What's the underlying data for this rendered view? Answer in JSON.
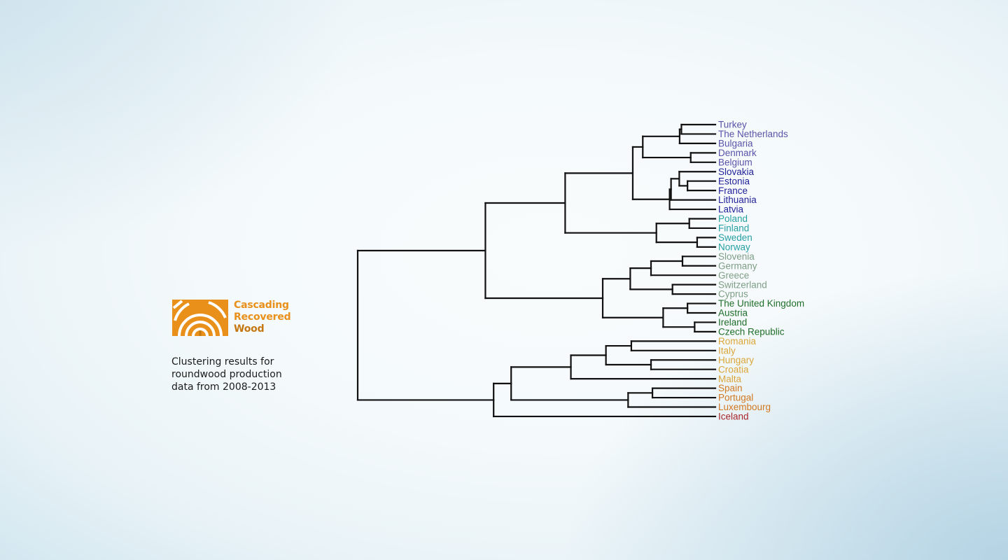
{
  "logo": {
    "line1": "Cascading",
    "line2": "Recovered",
    "line3": "Wood"
  },
  "caption": {
    "line1": "Clustering results for",
    "line2": "roundwood production",
    "line3": "data from 2008-2013"
  },
  "colors": {
    "brand_orange": "#e8901a",
    "brand_dark_orange": "#c57710",
    "tree_line": "#111111"
  },
  "dendrogram": {
    "leaves": [
      {
        "label": "Turkey",
        "color": "#5a54a8"
      },
      {
        "label": "The Netherlands",
        "color": "#5a54a8"
      },
      {
        "label": "Bulgaria",
        "color": "#5a54a8"
      },
      {
        "label": "Denmark",
        "color": "#5a54a8"
      },
      {
        "label": "Belgium",
        "color": "#5a54a8"
      },
      {
        "label": "Slovakia",
        "color": "#23239a"
      },
      {
        "label": "Estonia",
        "color": "#23239a"
      },
      {
        "label": "France",
        "color": "#23239a"
      },
      {
        "label": "Lithuania",
        "color": "#23239a"
      },
      {
        "label": "Latvia",
        "color": "#23239a"
      },
      {
        "label": "Poland",
        "color": "#27a0a4"
      },
      {
        "label": "Finland",
        "color": "#27a0a4"
      },
      {
        "label": "Sweden",
        "color": "#27a0a4"
      },
      {
        "label": "Norway",
        "color": "#27a0a4"
      },
      {
        "label": "Slovenia",
        "color": "#7f9e86"
      },
      {
        "label": "Germany",
        "color": "#7f9e86"
      },
      {
        "label": "Greece",
        "color": "#7f9e86"
      },
      {
        "label": "Switzerland",
        "color": "#7f9e86"
      },
      {
        "label": "Cyprus",
        "color": "#7f9e86"
      },
      {
        "label": "The United Kingdom",
        "color": "#1f6e2a"
      },
      {
        "label": "Austria",
        "color": "#1f6e2a"
      },
      {
        "label": "Ireland",
        "color": "#1f6e2a"
      },
      {
        "label": "Czech Republic",
        "color": "#1f6e2a"
      },
      {
        "label": "Romania",
        "color": "#dba63a"
      },
      {
        "label": "Italy",
        "color": "#dba63a"
      },
      {
        "label": "Hungary",
        "color": "#dba63a"
      },
      {
        "label": "Croatia",
        "color": "#dba63a"
      },
      {
        "label": "Malta",
        "color": "#dba63a"
      },
      {
        "label": "Spain",
        "color": "#d2781f"
      },
      {
        "label": "Portugal",
        "color": "#d2781f"
      },
      {
        "label": "Luxembourg",
        "color": "#d2781f"
      },
      {
        "label": "Iceland",
        "color": "#a8262b"
      }
    ],
    "merges": [
      {
        "a": "L0",
        "b": "L1",
        "height": 0.095
      },
      {
        "a": "M0",
        "b": "L2",
        "height": 0.1
      },
      {
        "a": "L3",
        "b": "L4",
        "height": 0.069
      },
      {
        "a": "M1",
        "b": "M2",
        "height": 0.203
      },
      {
        "a": "L6",
        "b": "L7",
        "height": 0.078
      },
      {
        "a": "L5",
        "b": "M4",
        "height": 0.101
      },
      {
        "a": "M5",
        "b": "L8",
        "height": 0.124
      },
      {
        "a": "M6",
        "b": "L9",
        "height": 0.128
      },
      {
        "a": "M3",
        "b": "M7",
        "height": 0.231
      },
      {
        "a": "L10",
        "b": "L11",
        "height": 0.073
      },
      {
        "a": "L12",
        "b": "L13",
        "height": 0.051
      },
      {
        "a": "M9",
        "b": "M10",
        "height": 0.165
      },
      {
        "a": "M8",
        "b": "M11",
        "height": 0.42
      },
      {
        "a": "L14",
        "b": "L15",
        "height": 0.092
      },
      {
        "a": "M13",
        "b": "L16",
        "height": 0.18
      },
      {
        "a": "L17",
        "b": "L18",
        "height": 0.12
      },
      {
        "a": "M14",
        "b": "M15",
        "height": 0.238
      },
      {
        "a": "L19",
        "b": "L20",
        "height": 0.078
      },
      {
        "a": "L21",
        "b": "L22",
        "height": 0.058
      },
      {
        "a": "M17",
        "b": "M18",
        "height": 0.146
      },
      {
        "a": "M16",
        "b": "M19",
        "height": 0.315
      },
      {
        "a": "M12",
        "b": "M20",
        "height": 0.643
      },
      {
        "a": "L23",
        "b": "L24",
        "height": 0.235
      },
      {
        "a": "L25",
        "b": "L26",
        "height": 0.18
      },
      {
        "a": "M22",
        "b": "M23",
        "height": 0.306
      },
      {
        "a": "M24",
        "b": "L27",
        "height": 0.404
      },
      {
        "a": "L28",
        "b": "L29",
        "height": 0.176
      },
      {
        "a": "M26",
        "b": "L30",
        "height": 0.244
      },
      {
        "a": "M25",
        "b": "M27",
        "height": 0.571
      },
      {
        "a": "M28",
        "b": "L31",
        "height": 0.62
      },
      {
        "a": "M21",
        "b": "M29",
        "height": 1.0
      }
    ]
  }
}
